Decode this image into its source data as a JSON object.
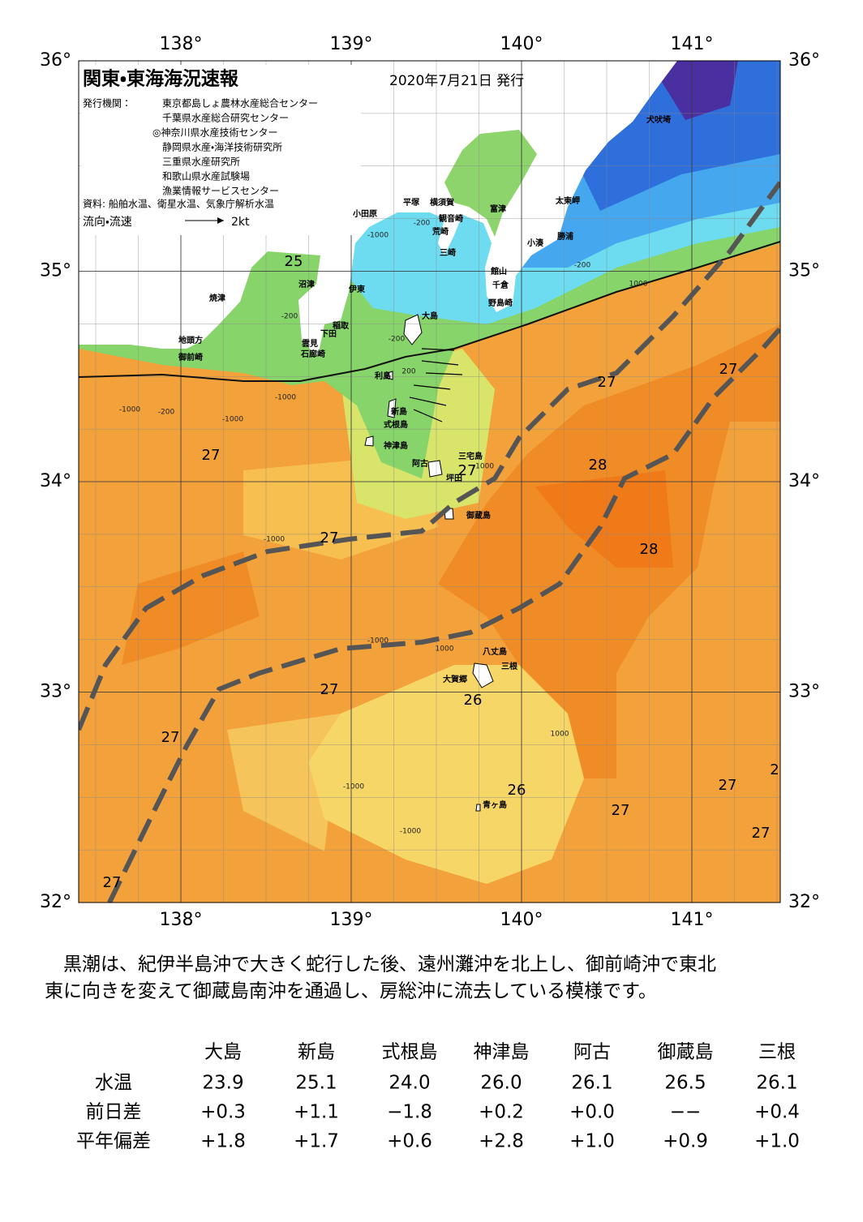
{
  "map": {
    "title": "関東・東海海況速報",
    "date": "2020年7月21日 発行",
    "publisher_label": "発行機関：",
    "publishers": [
      "東京都島しょ農林水産総合センター",
      "千葉県水産総合研究センター",
      "◎神奈川県水産技術センター",
      "静岡県水産・海洋技術研究所",
      "三重県水産研究所",
      "和歌山県水産試験場",
      "漁業情報サービスセンター"
    ],
    "source": "資料: 船舶水温、衛星水温、気象庁解析水温",
    "legend_label": "流向・流速",
    "legend_speed": "2kt",
    "lon_ticks": [
      {
        "value": 138,
        "label": "138°"
      },
      {
        "value": 139,
        "label": "139°"
      },
      {
        "value": 140,
        "label": "140°"
      },
      {
        "value": 141,
        "label": "141°"
      }
    ],
    "lat_ticks": [
      {
        "value": 36,
        "label": "36°"
      },
      {
        "value": 35,
        "label": "35°"
      },
      {
        "value": 34,
        "label": "34°"
      },
      {
        "value": 33,
        "label": "33°"
      },
      {
        "value": 32,
        "label": "32°"
      }
    ],
    "places": [
      "犬吠埼",
      "太東岬",
      "勝浦",
      "小湊",
      "富津",
      "平塚",
      "横須賀",
      "観音崎",
      "荒崎",
      "三崎",
      "館山",
      "千倉",
      "野島崎",
      "小田原",
      "沼津",
      "伊東",
      "焼津",
      "大島",
      "稲取",
      "下田",
      "雲見",
      "石廊崎",
      "地頭方",
      "御前崎",
      "利島",
      "新島",
      "式根島",
      "神津島",
      "三宅島",
      "阿古",
      "坪田",
      "御蔵島",
      "八丈島",
      "三根",
      "大賀郷",
      "青ヶ島"
    ],
    "isotherm_labels": [
      "25",
      "27",
      "27",
      "27",
      "28",
      "27",
      "27",
      "28",
      "27",
      "26",
      "27",
      "26",
      "27",
      "27",
      "27",
      "27",
      "2"
    ],
    "depth_labels": [
      "-1000",
      "-200",
      "1000",
      "-200",
      "-200",
      "-200",
      "200",
      "-1000",
      "-1000",
      "-200",
      "-1000",
      "-1000",
      "1000",
      "-1000",
      "1000",
      "-1000",
      "-1000",
      "-1000"
    ]
  },
  "description": [
    "　黒潮は、紀伊半島沖で大きく蛇行した後、遠州灘沖を北上し、御前崎沖で東北",
    "東に向きを変えて御蔵島南沖を通過し、房総沖に流去している模様です。"
  ],
  "table": {
    "header": [
      "大島",
      "新島",
      "式根島",
      "神津島",
      "阿古",
      "御蔵島",
      "三根"
    ],
    "rows": [
      [
        "水温",
        "23.9",
        "25.1",
        "24.0",
        "26.0",
        "26.1",
        "26.5",
        "26.1"
      ],
      [
        "前日差",
        "+0.3",
        "+1.1",
        "−1.8",
        "+0.2",
        "+0.0",
        "−−",
        "+0.4"
      ],
      [
        "平年偏差",
        "+1.8",
        "+1.7",
        "+0.6",
        "+2.8",
        "+1.0",
        "+0.9",
        "+1.0"
      ]
    ]
  }
}
